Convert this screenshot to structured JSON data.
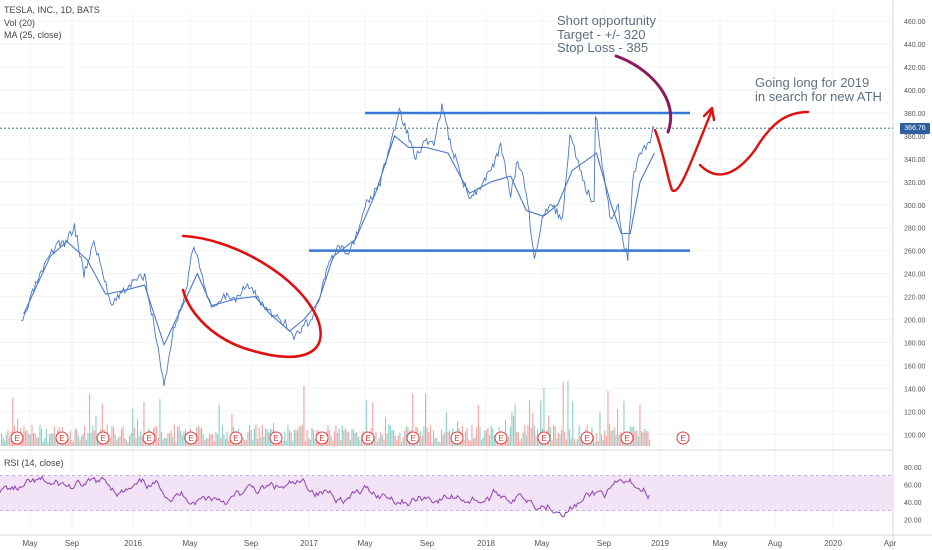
{
  "header": {
    "symbol": "TESLA, INC., 1D, BATS",
    "volume": "Vol (20)",
    "ma": "MA (25, close)",
    "rsi": "RSI (14, close)"
  },
  "annotations": {
    "short_line1": "Short opportunity",
    "short_line2": "Target - +/- 320",
    "short_line3": "Stop Loss - 385",
    "long_line1": "Going long for 2019",
    "long_line2": "in search for new ATH"
  },
  "last_price": "366.76",
  "colors": {
    "price_line": "#4a78c8",
    "range_lines": "#3a78d6",
    "drawing_red": "#e01010",
    "drawing_purple": "#8b1a5a",
    "rsi_line": "#8e44ad",
    "rsi_band": "#f2e3f7",
    "volume_up": "#26a69a",
    "volume_down": "#ef5350",
    "earnings_badge": "#e53935"
  },
  "chart_data": {
    "type": "line",
    "title": "TESLA, INC., 1D, BATS",
    "x_ticks": [
      "May",
      "Sep",
      "2016",
      "May",
      "Sep",
      "2017",
      "May",
      "Sep",
      "2018",
      "May",
      "Sep",
      "2019",
      "May",
      "Aug",
      "2020",
      "Apr"
    ],
    "y_ticks": [
      "460.00",
      "440.00",
      "420.00",
      "400.00",
      "380.00",
      "360.00",
      "340.00",
      "320.00",
      "300.00",
      "280.00",
      "260.00",
      "240.00",
      "220.00",
      "200.00",
      "180.00",
      "160.00",
      "140.00",
      "120.00",
      "100.00"
    ],
    "ylim": [
      95,
      468
    ],
    "series": [
      {
        "name": "MA (25, close)",
        "points": [
          [
            "2015-04-20",
            205
          ],
          [
            "2015-06-15",
            255
          ],
          [
            "2015-07-20",
            268
          ],
          [
            "2015-09-01",
            252
          ],
          [
            "2015-10-10",
            222
          ],
          [
            "2015-11-15",
            225
          ],
          [
            "2015-12-31",
            230
          ],
          [
            "2016-02-10",
            178
          ],
          [
            "2016-03-20",
            212
          ],
          [
            "2016-04-20",
            240
          ],
          [
            "2016-05-20",
            212
          ],
          [
            "2016-07-10",
            218
          ],
          [
            "2016-08-20",
            220
          ],
          [
            "2016-09-20",
            205
          ],
          [
            "2016-11-01",
            190
          ],
          [
            "2016-12-01",
            200
          ],
          [
            "2016-12-31",
            215
          ],
          [
            "2017-02-01",
            255
          ],
          [
            "2017-03-20",
            270
          ],
          [
            "2017-05-01",
            310
          ],
          [
            "2017-06-10",
            360
          ],
          [
            "2017-07-10",
            350
          ],
          [
            "2017-08-15",
            350
          ],
          [
            "2017-10-01",
            345
          ],
          [
            "2017-11-15",
            310
          ],
          [
            "2017-12-31",
            320
          ],
          [
            "2018-02-10",
            325
          ],
          [
            "2018-03-15",
            295
          ],
          [
            "2018-04-20",
            290
          ],
          [
            "2018-05-20",
            300
          ],
          [
            "2018-06-20",
            330
          ],
          [
            "2018-08-10",
            345
          ],
          [
            "2018-09-10",
            300
          ],
          [
            "2018-10-01",
            275
          ],
          [
            "2018-10-20",
            275
          ],
          [
            "2018-11-10",
            320
          ],
          [
            "2018-12-10",
            345
          ]
        ]
      },
      {
        "name": "Price",
        "points": [
          [
            "2015-04-15",
            195
          ],
          [
            "2015-05-15",
            230
          ],
          [
            "2015-06-15",
            255
          ],
          [
            "2015-06-30",
            268
          ],
          [
            "2015-07-15",
            265
          ],
          [
            "2015-08-05",
            282
          ],
          [
            "2015-08-25",
            240
          ],
          [
            "2015-09-15",
            268
          ],
          [
            "2015-10-01",
            245
          ],
          [
            "2015-10-20",
            215
          ],
          [
            "2015-11-10",
            222
          ],
          [
            "2015-12-05",
            232
          ],
          [
            "2015-12-31",
            238
          ],
          [
            "2016-01-20",
            195
          ],
          [
            "2016-02-10",
            143
          ],
          [
            "2016-03-01",
            190
          ],
          [
            "2016-03-30",
            230
          ],
          [
            "2016-04-10",
            262
          ],
          [
            "2016-04-25",
            248
          ],
          [
            "2016-05-20",
            208
          ],
          [
            "2016-06-15",
            222
          ],
          [
            "2016-07-10",
            218
          ],
          [
            "2016-08-01",
            232
          ],
          [
            "2016-08-20",
            222
          ],
          [
            "2016-09-10",
            210
          ],
          [
            "2016-09-30",
            202
          ],
          [
            "2016-10-20",
            198
          ],
          [
            "2016-11-10",
            185
          ],
          [
            "2016-11-25",
            192
          ],
          [
            "2016-12-15",
            200
          ],
          [
            "2016-12-31",
            215
          ],
          [
            "2017-01-20",
            245
          ],
          [
            "2017-02-10",
            262
          ],
          [
            "2017-03-05",
            258
          ],
          [
            "2017-03-25",
            278
          ],
          [
            "2017-04-15",
            305
          ],
          [
            "2017-05-05",
            312
          ],
          [
            "2017-05-25",
            340
          ],
          [
            "2017-06-20",
            382
          ],
          [
            "2017-07-05",
            365
          ],
          [
            "2017-07-25",
            340
          ],
          [
            "2017-08-10",
            355
          ],
          [
            "2017-09-01",
            355
          ],
          [
            "2017-09-18",
            385
          ],
          [
            "2017-10-05",
            355
          ],
          [
            "2017-10-25",
            330
          ],
          [
            "2017-11-15",
            305
          ],
          [
            "2017-12-05",
            315
          ],
          [
            "2017-12-31",
            330
          ],
          [
            "2018-01-20",
            350
          ],
          [
            "2018-02-10",
            310
          ],
          [
            "2018-02-25",
            340
          ],
          [
            "2018-03-15",
            310
          ],
          [
            "2018-04-01",
            255
          ],
          [
            "2018-04-20",
            290
          ],
          [
            "2018-05-10",
            300
          ],
          [
            "2018-05-30",
            285
          ],
          [
            "2018-06-15",
            360
          ],
          [
            "2018-06-30",
            340
          ],
          [
            "2018-07-15",
            318
          ],
          [
            "2018-08-05",
            300
          ],
          [
            "2018-08-08",
            380
          ],
          [
            "2018-08-25",
            325
          ],
          [
            "2018-09-10",
            285
          ],
          [
            "2018-09-25",
            300
          ],
          [
            "2018-10-05",
            265
          ],
          [
            "2018-10-15",
            255
          ],
          [
            "2018-10-25",
            320
          ],
          [
            "2018-11-10",
            345
          ],
          [
            "2018-11-25",
            350
          ],
          [
            "2018-12-10",
            368
          ]
        ]
      }
    ],
    "range_levels": [
      380,
      260
    ],
    "rsi": {
      "name": "RSI (14, close)",
      "y_ticks": [
        "80.00",
        "60.00",
        "40.00",
        "20.00"
      ],
      "band": [
        30,
        70
      ]
    },
    "grid": true,
    "legend": "top-left"
  }
}
